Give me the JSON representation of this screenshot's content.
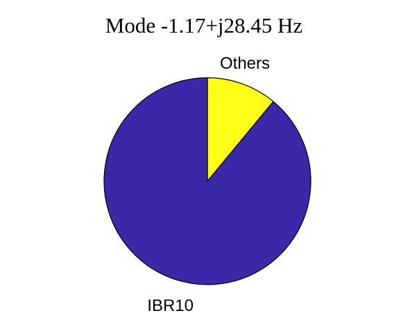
{
  "chart_data": {
    "type": "pie",
    "title": "Mode -1.17+j28.45 Hz",
    "slices": [
      {
        "label": "Others",
        "value": 0.11,
        "color": "#ffff1a"
      },
      {
        "label": "IBR10",
        "value": 0.89,
        "color": "#3b28a8"
      }
    ],
    "start": "12 o'clock",
    "direction": "clockwise",
    "outline_color": "#000000"
  }
}
